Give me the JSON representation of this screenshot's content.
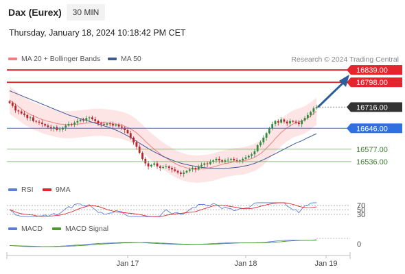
{
  "header": {
    "instrument": "Dax (Eurex)",
    "timeframe": "30 MIN",
    "datetime": "Thursday, January 18, 2024 10:18:42 PM CET"
  },
  "legend": {
    "ma20_bb": "MA 20 + Bollinger Bands",
    "ma50": "MA 50",
    "rsi": "RSI",
    "rsi_ma": "9MA",
    "macd": "MACD",
    "macd_signal": "MACD Signal"
  },
  "credit": "Research © 2024 Trading Central",
  "colors": {
    "resistance": "#e3262d",
    "support": "#5aa64a",
    "pivot": "#2f6fe0",
    "last": "#333333",
    "ma20": "#f08080",
    "ma50": "#3c5a96",
    "band": "#fde2e2",
    "arrow": "#2e5d9e",
    "candle_up": "#2e8b3e",
    "candle_down": "#b8232b"
  },
  "chart_data": {
    "type": "candlestick",
    "price_range": [
      16470,
      16855
    ],
    "levels": [
      {
        "value": 16839.0,
        "label": "16839.00",
        "kind": "resistance"
      },
      {
        "value": 16798.0,
        "label": "16798.00",
        "kind": "resistance"
      },
      {
        "value": 16716.0,
        "label": "16716.00",
        "kind": "last"
      },
      {
        "value": 16646.0,
        "label": "16646.00",
        "kind": "pivot"
      },
      {
        "value": 16577.0,
        "label": "16577.00",
        "kind": "support"
      },
      {
        "value": 16536.0,
        "label": "16536.00",
        "kind": "support"
      }
    ],
    "x_labels": [
      {
        "index": 40,
        "label": "Jan 17"
      },
      {
        "index": 80,
        "label": "Jan 18"
      },
      {
        "index": 120,
        "label": "Jan 19"
      }
    ],
    "candles": [
      16730,
      16720,
      16705,
      16702,
      16695,
      16690,
      16680,
      16682,
      16670,
      16668,
      16665,
      16660,
      16655,
      16650,
      16645,
      16650,
      16640,
      16642,
      16648,
      16655,
      16660,
      16658,
      16665,
      16670,
      16675,
      16672,
      16680,
      16682,
      16676,
      16670,
      16662,
      16660,
      16658,
      16662,
      16660,
      16655,
      16658,
      16652,
      16648,
      16640,
      16630,
      16615,
      16600,
      16585,
      16565,
      16545,
      16530,
      16520,
      16525,
      16530,
      16520,
      16515,
      16518,
      16520,
      16515,
      16510,
      16505,
      16500,
      16495,
      16500,
      16505,
      16510,
      16515,
      16510,
      16520,
      16525,
      16530,
      16528,
      16535,
      16540,
      16545,
      16540,
      16535,
      16540,
      16542,
      16545,
      16540,
      16538,
      16540,
      16545,
      16550,
      16555,
      16560,
      16570,
      16590,
      16600,
      16615,
      16630,
      16645,
      16660,
      16670,
      16665,
      16675,
      16668,
      16662,
      16670,
      16668,
      16665,
      16660,
      16672,
      16680,
      16690,
      16700,
      16712,
      16716
    ],
    "ma20": [
      16740,
      16732,
      16725,
      16718,
      16710,
      16703,
      16697,
      16692,
      16687,
      16683,
      16679,
      16675,
      16672,
      16669,
      16667,
      16664,
      16662,
      16660,
      16659,
      16658,
      16658,
      16658,
      16659,
      16660,
      16661,
      16662,
      16663,
      16664,
      16665,
      16666,
      16666,
      16666,
      16665,
      16664,
      16663,
      16661,
      16660,
      16658,
      16656,
      16653,
      16649,
      16644,
      16638,
      16631,
      16622,
      16613,
      16603,
      16594,
      16585,
      16577,
      16569,
      16561,
      16554,
      16548,
      16542,
      16536,
      16530,
      16525,
      16521,
      16518,
      16515,
      16513,
      16512,
      16511,
      16511,
      16512,
      16513,
      16514,
      16516,
      16518,
      16521,
      16524,
      16527,
      16529,
      16531,
      16533,
      16535,
      16536,
      16537,
      16538,
      16540,
      16543,
      16546,
      16550,
      16556,
      16562,
      16570,
      16580,
      16590,
      16600,
      16612,
      16622,
      16632,
      16640,
      16648,
      16654,
      16660,
      16664,
      16667,
      16670,
      16674,
      16680,
      16687,
      16695,
      16702
    ],
    "ma50": [
      16770,
      16766,
      16762,
      16758,
      16754,
      16750,
      16746,
      16742,
      16738,
      16734,
      16730,
      16726,
      16722,
      16718,
      16714,
      16710,
      16706,
      16702,
      16698,
      16694,
      16690,
      16687,
      16684,
      16681,
      16678,
      16675,
      16672,
      16669,
      16666,
      16663,
      16660,
      16657,
      16654,
      16651,
      16648,
      16644,
      16640,
      16636,
      16631,
      16626,
      16621,
      16615,
      16609,
      16603,
      16597,
      16591,
      16585,
      16579,
      16573,
      16568,
      16563,
      16558,
      16553,
      16549,
      16545,
      16541,
      16537,
      16534,
      16531,
      16528,
      16526,
      16524,
      16522,
      16520,
      16518,
      16517,
      16516,
      16515,
      16514,
      16513,
      16513,
      16513,
      16513,
      16513,
      16514,
      16515,
      16516,
      16517,
      16518,
      16520,
      16522,
      16524,
      16527,
      16530,
      16534,
      16538,
      16542,
      16547,
      16552,
      16557,
      16562,
      16567,
      16572,
      16577,
      16582,
      16587,
      16592,
      16597,
      16601,
      16605,
      16610,
      16615,
      16619,
      16624,
      16628
    ],
    "band_width": 45,
    "rsi_levels": [
      70,
      50,
      30
    ],
    "macd_zero": "0"
  }
}
